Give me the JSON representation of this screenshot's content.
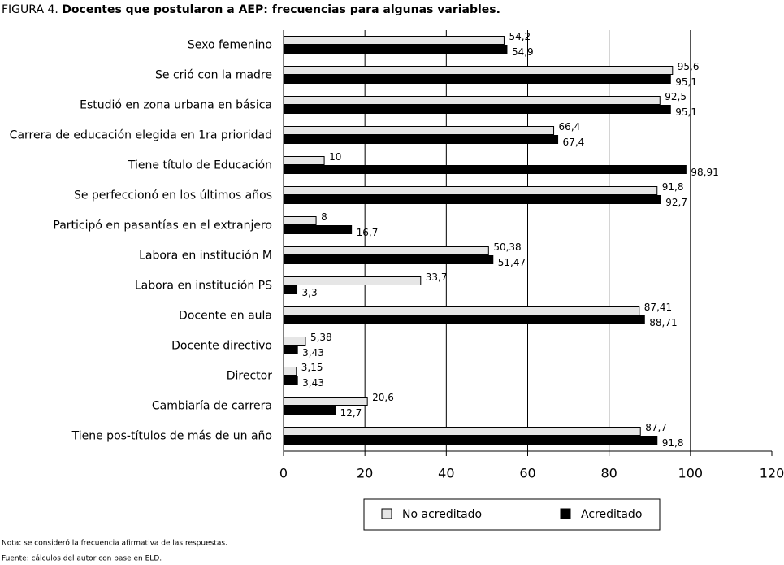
{
  "chart_data": {
    "type": "hbar",
    "title_prefix": "FIGURA 4.",
    "title": "Docentes que postularon a AEP: frecuencias para algunas variables.",
    "categories": [
      "Sexo femenino",
      "Se crió con la madre",
      "Estudió en zona urbana en básica",
      "Carrera de educación elegida en 1ra prioridad",
      "Tiene título de Educación",
      "Se perfeccionó en los últimos años",
      "Participó en pasantías en el extranjero",
      "Labora en institución M",
      "Labora en institución PS",
      "Docente en aula",
      "Docente directivo",
      "Director",
      "Cambiaría de carrera",
      "Tiene pos-títulos de más de un año"
    ],
    "series": [
      {
        "name": "No acreditado",
        "color": "#e6e6e6",
        "values": [
          54.2,
          95.6,
          92.5,
          66.4,
          10,
          91.8,
          8,
          50.38,
          33.7,
          87.41,
          5.38,
          3.15,
          20.6,
          87.7
        ],
        "value_labels": [
          "54,2",
          "95,6",
          "92,5",
          "66,4",
          "10",
          "91,8",
          "8",
          "50,38",
          "33,7",
          "87,41",
          "5,38",
          "3,15",
          "20,6",
          "87,7"
        ]
      },
      {
        "name": "Acreditado",
        "color": "#000000",
        "values": [
          54.9,
          95.1,
          95.1,
          67.4,
          98.91,
          92.7,
          16.7,
          51.47,
          3.3,
          88.71,
          3.43,
          3.43,
          12.7,
          91.8
        ],
        "value_labels": [
          "54,9",
          "95,1",
          "95,1",
          "67,4",
          "98,91",
          "92,7",
          "16,7",
          "51,47",
          "3,3",
          "88,71",
          "3,43",
          "3,43",
          "12,7",
          "91,8"
        ]
      }
    ],
    "xlim": [
      0,
      120
    ],
    "xticks": [
      0,
      20,
      40,
      60,
      80,
      100,
      120
    ],
    "grid": true,
    "legend": "bottom",
    "note": "Nota: se consideró la frecuencia afirmativa de las respuestas.",
    "source": "Fuente: cálculos del autor con base en ELD."
  }
}
